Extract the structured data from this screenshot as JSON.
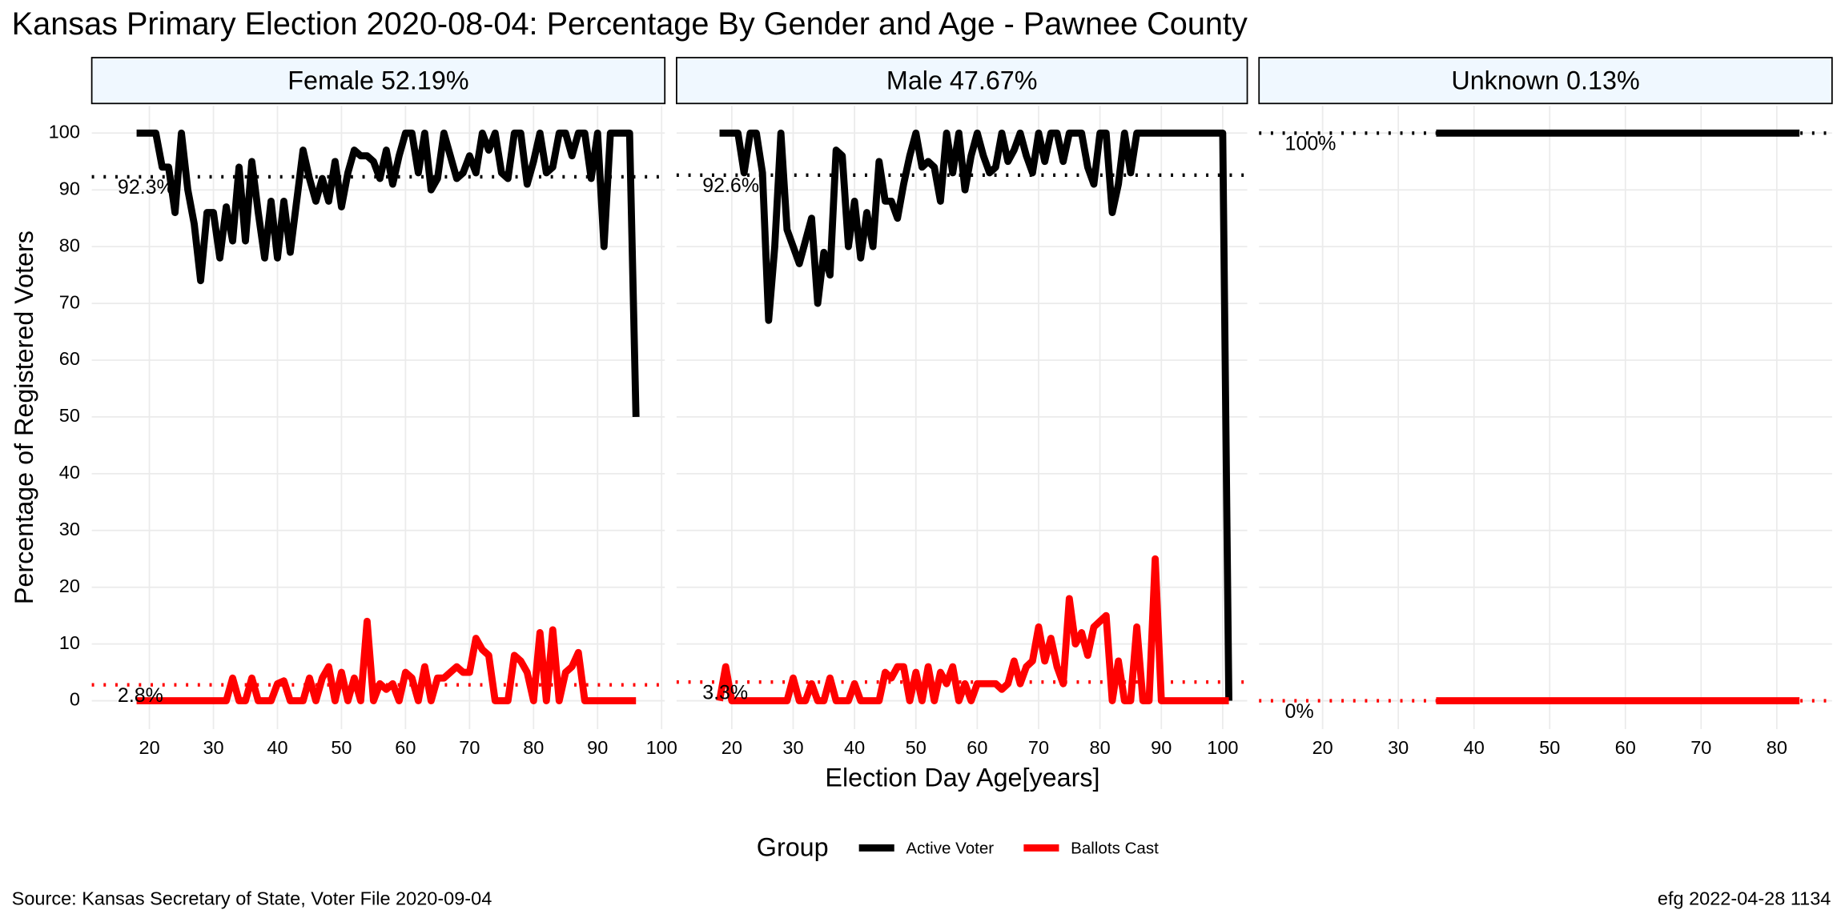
{
  "chart_data": {
    "type": "line",
    "title": "Kansas Primary Election 2020-08-04:  Percentage By Gender and Age - Pawnee County",
    "x_label": "Election Day Age[years]",
    "y_label": "Percentage of Registered Voters",
    "legend_title": "Group",
    "caption_left": "Source:  Kansas Secretary of State, Voter File  2020-09-04",
    "caption_right": "efg 2022-04-28 1134",
    "ylim": [
      -5,
      104.8
    ],
    "yticks": [
      0,
      10,
      20,
      30,
      40,
      50,
      60,
      70,
      80,
      90,
      100
    ],
    "grid": true,
    "facets": [
      {
        "strip": "Female 52.19%",
        "xlim": [
          11,
          100.5
        ],
        "xticks": [
          20,
          30,
          40,
          50,
          60,
          70,
          80,
          90,
          100
        ],
        "x": [
          18,
          19,
          20,
          21,
          22,
          23,
          24,
          25,
          26,
          27,
          28,
          29,
          30,
          31,
          32,
          33,
          34,
          35,
          36,
          37,
          38,
          39,
          40,
          41,
          42,
          43,
          44,
          45,
          46,
          47,
          48,
          49,
          50,
          51,
          52,
          53,
          54,
          55,
          56,
          57,
          58,
          59,
          60,
          61,
          62,
          63,
          64,
          65,
          66,
          67,
          68,
          69,
          70,
          71,
          72,
          73,
          74,
          75,
          76,
          77,
          78,
          79,
          80,
          81,
          82,
          83,
          84,
          85,
          86,
          87,
          88,
          89,
          90,
          91,
          92,
          93,
          94,
          95,
          96
        ],
        "series": [
          {
            "name": "Active Voter",
            "color": "#000000",
            "values": [
              100,
              100,
              100,
              100,
              94,
              94,
              86,
              100,
              90,
              84,
              74,
              86,
              86,
              78,
              87,
              81,
              94,
              81,
              95,
              86,
              78,
              88,
              78,
              88,
              79,
              88,
              97,
              92,
              88,
              92,
              88,
              95,
              87,
              93,
              97,
              96,
              96,
              95,
              92,
              97,
              91,
              96,
              100,
              100,
              93,
              100,
              90,
              92,
              100,
              96,
              92,
              93,
              96,
              93,
              100,
              97,
              100,
              93,
              92,
              100,
              100,
              91,
              95,
              100,
              93,
              94,
              100,
              100,
              96,
              100,
              100,
              92,
              100,
              80,
              100,
              100,
              100,
              100,
              50
            ]
          },
          {
            "name": "Ballots Cast",
            "color": "#ff0000",
            "values": [
              0,
              0,
              0,
              0,
              0,
              0,
              0,
              0,
              0,
              0,
              0,
              0,
              0,
              0,
              0,
              4,
              0,
              0,
              4,
              0,
              0,
              0,
              3,
              3.5,
              0,
              0,
              0,
              4,
              0,
              4,
              6,
              0,
              5,
              0,
              4,
              0,
              14,
              0,
              3,
              2,
              3,
              0,
              5,
              4,
              0,
              6,
              0,
              4,
              4,
              5,
              6,
              5,
              5,
              11,
              9,
              8,
              0,
              0,
              0,
              8,
              7,
              5,
              0,
              12,
              0,
              12.5,
              0,
              5,
              6,
              8.5,
              0,
              0,
              0,
              0,
              0,
              0,
              0,
              0,
              0
            ]
          }
        ],
        "ref_lines": [
          {
            "value": 92.3,
            "label": "92.3%",
            "color": "#000000"
          },
          {
            "value": 2.8,
            "label": "2.8%",
            "color": "#ff0000"
          }
        ]
      },
      {
        "strip": "Male 47.67%",
        "xlim": [
          11,
          104
        ],
        "xticks": [
          20,
          30,
          40,
          50,
          60,
          70,
          80,
          90,
          100
        ],
        "x": [
          18,
          19,
          20,
          21,
          22,
          23,
          24,
          25,
          26,
          27,
          28,
          29,
          30,
          31,
          32,
          33,
          34,
          35,
          36,
          37,
          38,
          39,
          40,
          41,
          42,
          43,
          44,
          45,
          46,
          47,
          48,
          49,
          50,
          51,
          52,
          53,
          54,
          55,
          56,
          57,
          58,
          59,
          60,
          61,
          62,
          63,
          64,
          65,
          66,
          67,
          68,
          69,
          70,
          71,
          72,
          73,
          74,
          75,
          76,
          77,
          78,
          79,
          80,
          81,
          82,
          83,
          84,
          85,
          86,
          87,
          88,
          89,
          90,
          91,
          92,
          93,
          94,
          95,
          96,
          97,
          98,
          99,
          100,
          101
        ],
        "series": [
          {
            "name": "Active Voter",
            "color": "#000000",
            "values": [
              100,
              100,
              100,
              100,
              93,
              100,
              100,
              93,
              67,
              80,
              100,
              83,
              80,
              77,
              81,
              85,
              70,
              79,
              75,
              97,
              96,
              80,
              88,
              78,
              86,
              80,
              95,
              88,
              88,
              85,
              91,
              96,
              100,
              94,
              95,
              94,
              88,
              100,
              93,
              100,
              90,
              96,
              100,
              96,
              93,
              94,
              100,
              95,
              97,
              100,
              96,
              93,
              100,
              95,
              100,
              100,
              95,
              100,
              100,
              100,
              94,
              91,
              100,
              100,
              86,
              91,
              100,
              93,
              100,
              100,
              100,
              100,
              100,
              100,
              100,
              100,
              100,
              100,
              100,
              100,
              100,
              100,
              100,
              0
            ]
          },
          {
            "name": "Ballots Cast",
            "color": "#ff0000",
            "values": [
              0,
              6,
              0,
              0,
              0,
              0,
              0,
              0,
              0,
              0,
              0,
              0,
              4,
              0,
              0,
              3,
              0,
              0,
              4,
              0,
              0,
              0,
              3,
              0,
              0,
              0,
              0,
              5,
              4,
              6,
              6,
              0,
              5,
              0,
              6,
              0,
              5,
              3,
              6,
              0,
              3,
              0,
              3,
              3,
              3,
              3,
              2,
              3,
              7,
              3,
              6,
              7,
              13,
              7,
              11,
              6,
              3,
              18,
              10,
              12,
              8,
              13,
              14,
              15,
              0,
              7,
              0,
              0,
              13,
              0,
              0,
              25,
              0,
              0,
              0,
              0,
              0,
              0,
              0,
              0,
              0,
              0,
              0,
              0
            ]
          }
        ],
        "ref_lines": [
          {
            "value": 92.6,
            "label": "92.6%",
            "color": "#000000"
          },
          {
            "value": 3.3,
            "label": "3.3%",
            "color": "#ff0000"
          }
        ]
      },
      {
        "strip": "Unknown 0.13%",
        "xlim": [
          11.6,
          87.3
        ],
        "xticks": [
          20,
          30,
          40,
          50,
          60,
          70,
          80
        ],
        "x": [
          35,
          83
        ],
        "series": [
          {
            "name": "Active Voter",
            "color": "#000000",
            "values": [
              100,
              100
            ]
          },
          {
            "name": "Ballots Cast",
            "color": "#ff0000",
            "values": [
              0,
              0
            ]
          }
        ],
        "ref_lines": [
          {
            "value": 100,
            "label": "100%",
            "color": "#000000"
          },
          {
            "value": 0,
            "label": "0%",
            "color": "#ff0000"
          }
        ]
      }
    ]
  }
}
